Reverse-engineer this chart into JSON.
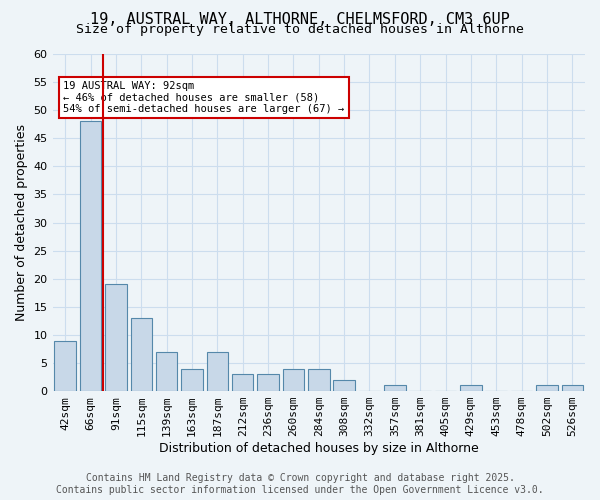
{
  "title1": "19, AUSTRAL WAY, ALTHORNE, CHELMSFORD, CM3 6UP",
  "title2": "Size of property relative to detached houses in Althorne",
  "xlabel": "Distribution of detached houses by size in Althorne",
  "ylabel": "Number of detached properties",
  "categories": [
    "42sqm",
    "66sqm",
    "91sqm",
    "115sqm",
    "139sqm",
    "163sqm",
    "187sqm",
    "212sqm",
    "236sqm",
    "260sqm",
    "284sqm",
    "308sqm",
    "332sqm",
    "357sqm",
    "381sqm",
    "405sqm",
    "429sqm",
    "453sqm",
    "478sqm",
    "502sqm",
    "526sqm"
  ],
  "values": [
    9,
    48,
    19,
    13,
    7,
    4,
    7,
    3,
    3,
    4,
    4,
    2,
    0,
    1,
    0,
    0,
    1,
    0,
    0,
    1,
    1
  ],
  "bar_color": "#c8d8e8",
  "bar_edge_color": "#5588aa",
  "grid_color": "#ccddee",
  "red_line_x": 1.5,
  "annotation_text": "19 AUSTRAL WAY: 92sqm\n← 46% of detached houses are smaller (58)\n54% of semi-detached houses are larger (67) →",
  "annotation_box_color": "#ffffff",
  "annotation_box_edge_color": "#cc0000",
  "annotation_text_color": "#000000",
  "red_line_color": "#cc0000",
  "ylim": [
    0,
    60
  ],
  "yticks": [
    0,
    5,
    10,
    15,
    20,
    25,
    30,
    35,
    40,
    45,
    50,
    55,
    60
  ],
  "footer_text": "Contains HM Land Registry data © Crown copyright and database right 2025.\nContains public sector information licensed under the Open Government Licence v3.0.",
  "bg_color": "#eef4f8",
  "plot_bg_color": "#eef4f8",
  "title_fontsize": 11,
  "axis_label_fontsize": 9,
  "tick_fontsize": 8,
  "footer_fontsize": 7
}
